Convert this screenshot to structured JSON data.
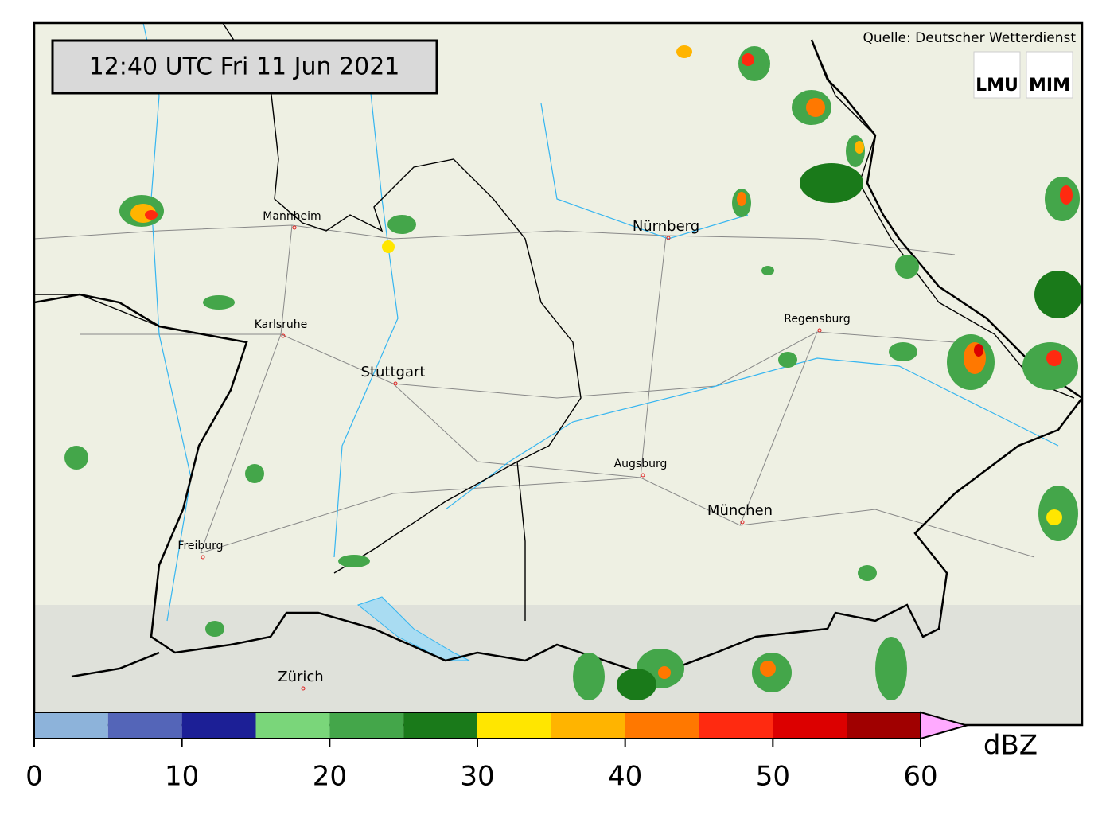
{
  "header": {
    "timestamp": "12:40 UTC  Fri 11 Jun 2021",
    "source": "Quelle: Deutscher Wetterdienst",
    "logos": [
      "LMU",
      "MIM"
    ]
  },
  "cities": [
    {
      "name": "Mannheim"
    },
    {
      "name": "Karlsruhe"
    },
    {
      "name": "Stuttgart"
    },
    {
      "name": "Nürnberg"
    },
    {
      "name": "Regensburg"
    },
    {
      "name": "Augsburg"
    },
    {
      "name": "München"
    },
    {
      "name": "Freiburg"
    },
    {
      "name": "Zürich"
    }
  ],
  "colorbar": {
    "bounds": [
      0,
      5,
      10,
      15,
      20,
      25,
      30,
      35,
      40,
      45,
      50,
      55,
      60
    ],
    "colors": [
      "#8db3da",
      "#5465b8",
      "#1c1f96",
      "#7ad67a",
      "#44a64a",
      "#1a7a1a",
      "#ffe600",
      "#ffb400",
      "#ff7800",
      "#ff2a10",
      "#dc0000",
      "#a00000"
    ],
    "extend_color": "#ffaaff",
    "ticks": [
      0,
      10,
      20,
      30,
      40,
      50,
      60
    ],
    "unit": "dBZ"
  }
}
